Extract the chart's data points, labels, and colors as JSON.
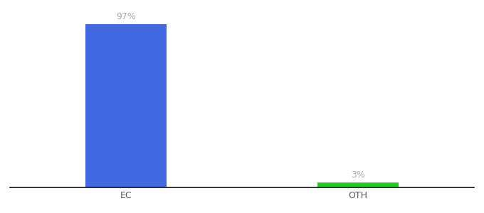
{
  "categories": [
    "EC",
    "OTH"
  ],
  "values": [
    97,
    3
  ],
  "bar_colors": [
    "#4169e1",
    "#22cc22"
  ],
  "label_colors": [
    "#aaaaaa",
    "#aaaaaa"
  ],
  "labels": [
    "97%",
    "3%"
  ],
  "ylim": [
    0,
    105
  ],
  "background_color": "#ffffff",
  "bar_width": 0.35,
  "label_fontsize": 9,
  "tick_fontsize": 9,
  "axisline_color": "#111111",
  "xlim": [
    -0.5,
    1.5
  ]
}
